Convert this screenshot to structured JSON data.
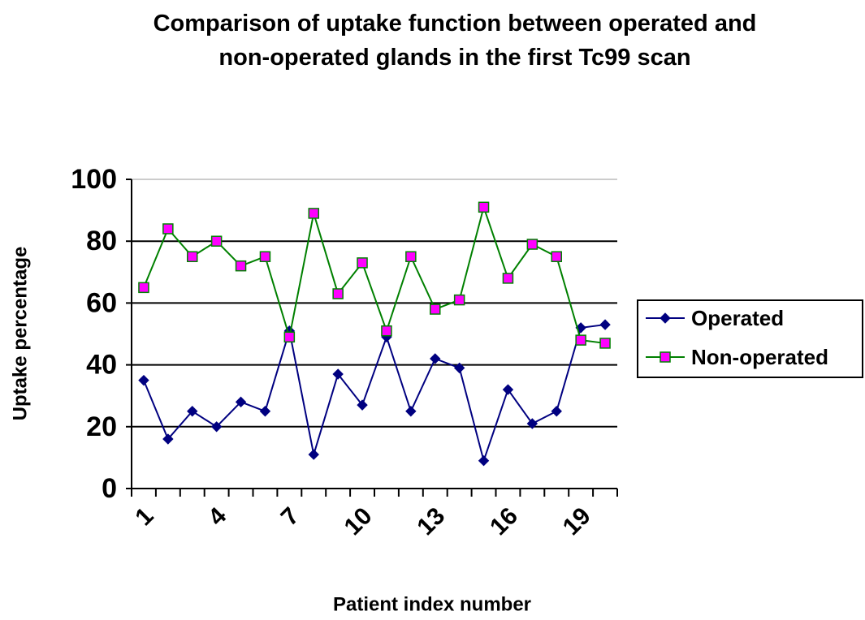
{
  "chart_data": {
    "type": "line",
    "title": "Comparison of uptake function between operated and non-operated glands in the first Tc99 scan",
    "x_label": "Patient index number",
    "y_label": "Uptake percentage",
    "categories": [
      "1",
      null,
      null,
      "4",
      null,
      null,
      "7",
      null,
      null,
      "10",
      null,
      null,
      "13",
      null,
      null,
      "16",
      null,
      null,
      "19",
      null
    ],
    "series": [
      {
        "name": "Operated",
        "color": "#000080",
        "marker": "diamond",
        "marker_fill": "#000080",
        "values": [
          35,
          16,
          25,
          20,
          28,
          25,
          51,
          11,
          37,
          27,
          49,
          25,
          42,
          39,
          9,
          32,
          21,
          25,
          52,
          53
        ]
      },
      {
        "name": "Non-operated",
        "color": "#008000",
        "marker": "square",
        "marker_fill": "#ff00ff",
        "values": [
          65,
          84,
          75,
          80,
          72,
          75,
          49,
          89,
          63,
          73,
          51,
          75,
          58,
          61,
          91,
          68,
          79,
          75,
          48,
          47
        ]
      }
    ],
    "ylim": [
      0,
      100
    ],
    "yticks": [
      0,
      20,
      40,
      60,
      80,
      100
    ],
    "grid": true,
    "legend": "right"
  }
}
